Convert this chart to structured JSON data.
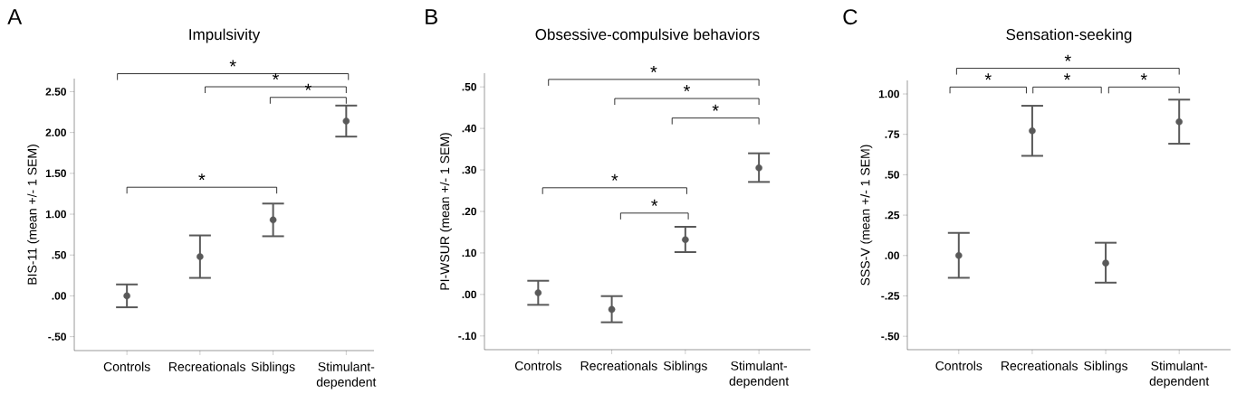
{
  "chart_data": [
    {
      "type": "scatter",
      "title": "Impulsivity",
      "ylabel": "BIS-11 (mean +/- 1 SEM)",
      "categories": [
        "Controls",
        "Recreationals",
        "Siblings",
        "Stimulant-dependent"
      ],
      "values": [
        0.0,
        0.48,
        0.93,
        2.14
      ],
      "errors": [
        [
          -0.14,
          0.14
        ],
        [
          0.22,
          0.74
        ],
        [
          0.73,
          1.13
        ],
        [
          1.95,
          2.33
        ]
      ],
      "color": "#595959",
      "marker": "circle",
      "ylim": [
        -0.67,
        2.66
      ],
      "yticks": [
        {
          "value": -0.5,
          "label": "-.50"
        },
        {
          "value": 0,
          "label": ".00"
        },
        {
          "value": 0.5,
          "label": ".50"
        },
        {
          "value": 1,
          "label": "1.00"
        },
        {
          "value": 1.5,
          "label": "1.50"
        },
        {
          "value": 2,
          "label": "2.00"
        },
        {
          "value": 2.5,
          "label": "2.50"
        }
      ],
      "annotations": [
        "A",
        "*",
        "*",
        "*",
        "*"
      ]
    },
    {
      "type": "scatter",
      "title": "Obsessive-compulsive behaviors",
      "ylabel": "PI-WSUR (mean +/- 1 SEM)",
      "categories": [
        "Controls",
        "Recreationals",
        "Siblings",
        "Stimulant-dependent"
      ],
      "values": [
        0.004,
        -0.036,
        0.132,
        0.305
      ],
      "errors": [
        [
          -0.025,
          0.033
        ],
        [
          -0.067,
          -0.004
        ],
        [
          0.102,
          0.163
        ],
        [
          0.271,
          0.34
        ]
      ],
      "color": "#595959",
      "marker": "circle",
      "ylim": [
        -0.133,
        0.533
      ],
      "yticks": [
        {
          "value": -0.1,
          "label": "-.10"
        },
        {
          "value": 0,
          "label": ".00"
        },
        {
          "value": 0.1,
          "label": ".10"
        },
        {
          "value": 0.2,
          "label": ".20"
        },
        {
          "value": 0.3,
          "label": ".30"
        },
        {
          "value": 0.4,
          "label": ".40"
        },
        {
          "value": 0.5,
          "label": ".50"
        }
      ],
      "annotations": [
        "B",
        "*",
        "*",
        "*",
        "*",
        "*"
      ]
    },
    {
      "type": "scatter",
      "title": "Sensation-seeking",
      "ylabel": "SSS-V (mean +/- 1 SEM)",
      "categories": [
        "Controls",
        "Recreationals",
        "Siblings",
        "Stimulant-dependent"
      ],
      "values": [
        0.0,
        0.772,
        -0.047,
        0.828
      ],
      "errors": [
        [
          -0.138,
          0.14
        ],
        [
          0.617,
          0.927
        ],
        [
          -0.168,
          0.079
        ],
        [
          0.692,
          0.965
        ]
      ],
      "color": "#595959",
      "marker": "circle",
      "ylim": [
        -0.583,
        1.084
      ],
      "yticks": [
        {
          "value": -0.5,
          "label": "-.50"
        },
        {
          "value": -0.25,
          "label": "-.25"
        },
        {
          "value": 0,
          "label": ".00"
        },
        {
          "value": 0.25,
          "label": ".25"
        },
        {
          "value": 0.5,
          "label": ".50"
        },
        {
          "value": 0.75,
          "label": ".75"
        },
        {
          "value": 1,
          "label": "1.00"
        }
      ],
      "annotations": [
        "C",
        "*",
        "*",
        "*",
        "*"
      ]
    }
  ]
}
